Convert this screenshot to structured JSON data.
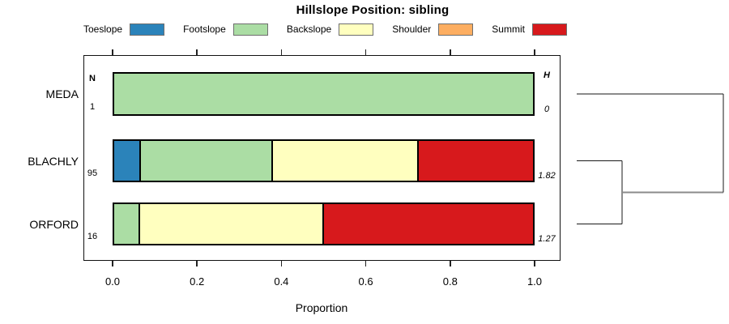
{
  "title": "Hillslope Position: sibling",
  "legend": [
    {
      "label": "Toeslope",
      "color": "#2b83ba"
    },
    {
      "label": "Footslope",
      "color": "#abdda4"
    },
    {
      "label": "Backslope",
      "color": "#ffffbf"
    },
    {
      "label": "Shoulder",
      "color": "#fdae61"
    },
    {
      "label": "Summit",
      "color": "#d7191c"
    }
  ],
  "columns": {
    "n_header": "N",
    "h_header": "H"
  },
  "axis": {
    "xlabel": "Proportion",
    "tick_labels": [
      "0.0",
      "0.2",
      "0.4",
      "0.6",
      "0.8",
      "1.0"
    ]
  },
  "rows": [
    {
      "name": "MEDA",
      "n": "1",
      "h": "0",
      "segments": [
        {
          "category": "Footslope",
          "proportion": 1.0
        }
      ]
    },
    {
      "name": "BLACHLY",
      "n": "95",
      "h": "1.82",
      "segments": [
        {
          "category": "Toeslope",
          "proportion": 0.0632
        },
        {
          "category": "Footslope",
          "proportion": 0.3158
        },
        {
          "category": "Backslope",
          "proportion": 0.3474
        },
        {
          "category": "Summit",
          "proportion": 0.2737
        }
      ]
    },
    {
      "name": "ORFORD",
      "n": "16",
      "h": "1.27",
      "segments": [
        {
          "category": "Footslope",
          "proportion": 0.0625
        },
        {
          "category": "Backslope",
          "proportion": 0.4375
        },
        {
          "category": "Summit",
          "proportion": 0.5
        }
      ]
    }
  ],
  "chart_data": {
    "type": "bar",
    "subtype": "horizontal-stacked-proportion",
    "title": "Hillslope Position: sibling",
    "xlabel": "Proportion",
    "xlim": [
      0,
      1
    ],
    "x_ticks": [
      0.0,
      0.2,
      0.4,
      0.6,
      0.8,
      1.0
    ],
    "categories": [
      "Toeslope",
      "Footslope",
      "Backslope",
      "Shoulder",
      "Summit"
    ],
    "category_colors": [
      "#2b83ba",
      "#abdda4",
      "#ffffbf",
      "#fdae61",
      "#d7191c"
    ],
    "groups": [
      "MEDA",
      "BLACHLY",
      "ORFORD"
    ],
    "series": [
      {
        "name": "Toeslope",
        "values": [
          0,
          0.0632,
          0
        ]
      },
      {
        "name": "Footslope",
        "values": [
          1.0,
          0.3158,
          0.0625
        ]
      },
      {
        "name": "Backslope",
        "values": [
          0,
          0.3474,
          0.4375
        ]
      },
      {
        "name": "Shoulder",
        "values": [
          0,
          0,
          0
        ]
      },
      {
        "name": "Summit",
        "values": [
          0,
          0.2737,
          0.5
        ]
      }
    ],
    "annotations": {
      "N_per_group": [
        1,
        95,
        16
      ],
      "H_shannon_per_group": [
        0,
        1.82,
        1.27
      ]
    },
    "legend_position": "top",
    "grid": false,
    "dendrogram": {
      "position": "right",
      "structure": "((BLACHLY,ORFORD),MEDA)",
      "first_merge": [
        "BLACHLY",
        "ORFORD"
      ],
      "second_merge": [
        [
          "BLACHLY",
          "ORFORD"
        ],
        "MEDA"
      ]
    }
  }
}
